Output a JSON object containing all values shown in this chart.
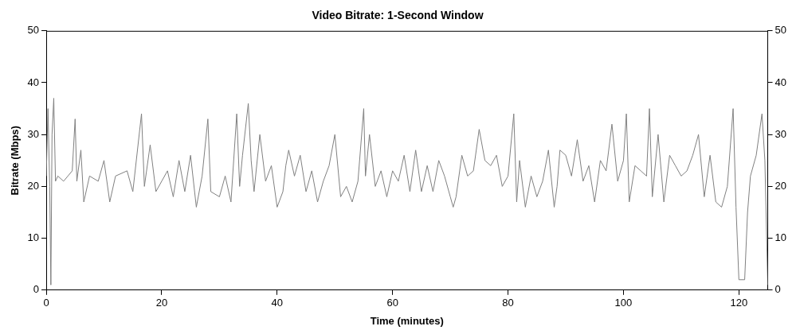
{
  "chart_data": {
    "type": "line",
    "title": "Video Bitrate: 1-Second Window",
    "xlabel": "Time (minutes)",
    "ylabel": "Bitrate (Mbps)",
    "xlim": [
      0,
      125
    ],
    "xticks": [
      0,
      20,
      40,
      60,
      80,
      100,
      120
    ],
    "ylim": [
      0,
      50
    ],
    "yticks": [
      0,
      10,
      20,
      30,
      40,
      50
    ],
    "y2lim": [
      0,
      50
    ],
    "y2ticks": [
      0,
      10,
      20,
      30,
      40,
      50
    ],
    "grid": false,
    "legend": false,
    "marker": "none",
    "line_style": "solid",
    "series": [
      {
        "color": "#808080",
        "x": [
          0,
          0.3,
          0.6,
          0.8,
          1.0,
          1.3,
          1.6,
          2,
          3,
          4.5,
          5,
          5.3,
          6,
          6.5,
          7.5,
          9,
          10,
          11,
          12,
          14,
          15,
          16.5,
          17,
          18,
          19,
          20,
          21,
          22,
          23,
          24,
          25,
          26,
          27,
          28,
          28.5,
          30,
          31,
          32,
          33,
          33.5,
          34,
          35,
          35.5,
          36,
          37,
          38,
          39,
          40,
          41,
          41.5,
          42,
          43,
          44,
          45,
          46,
          47,
          48,
          49,
          50,
          51,
          52,
          53,
          54,
          55,
          55.3,
          56,
          57,
          58,
          59,
          60,
          61,
          62,
          63,
          64,
          65,
          66,
          67,
          68,
          69,
          70,
          70.5,
          71,
          72,
          73,
          74,
          75,
          76,
          77,
          78,
          79,
          80,
          81,
          81.5,
          82,
          83,
          84,
          85,
          86,
          87,
          88,
          88.5,
          89,
          90,
          91,
          92,
          93,
          94,
          95,
          96,
          97,
          98,
          99,
          100,
          100.5,
          101,
          102,
          103,
          104,
          104.5,
          105,
          106,
          107,
          108,
          109,
          110,
          111,
          112,
          113,
          114,
          115,
          116,
          117,
          118,
          119,
          119.5,
          120,
          121,
          121.5,
          122,
          123,
          124,
          124.5,
          125
        ],
        "values": [
          22,
          35,
          20,
          1,
          30,
          37,
          21,
          22,
          21,
          23,
          33,
          21,
          27,
          17,
          22,
          21,
          25,
          17,
          22,
          23,
          19,
          34,
          20,
          28,
          19,
          21,
          23,
          18,
          25,
          19,
          26,
          16,
          22,
          33,
          19,
          18,
          22,
          17,
          34,
          20,
          26,
          36,
          25,
          19,
          30,
          21,
          24,
          16,
          19,
          24,
          27,
          22,
          26,
          19,
          23,
          17,
          21,
          24,
          30,
          18,
          20,
          17,
          21,
          35,
          22,
          30,
          20,
          23,
          18,
          23,
          21,
          26,
          19,
          27,
          19,
          24,
          19,
          25,
          22,
          18,
          16,
          18,
          26,
          22,
          23,
          31,
          25,
          24,
          26,
          20,
          22,
          34,
          17,
          25,
          16,
          22,
          18,
          21,
          27,
          16,
          20,
          27,
          26,
          22,
          29,
          21,
          24,
          17,
          25,
          23,
          32,
          21,
          25,
          34,
          17,
          24,
          23,
          22,
          35,
          18,
          30,
          17,
          26,
          24,
          22,
          23,
          26,
          30,
          18,
          26,
          17,
          16,
          20,
          35,
          16,
          2,
          2,
          15,
          22,
          26,
          34,
          25,
          1
        ]
      }
    ]
  }
}
